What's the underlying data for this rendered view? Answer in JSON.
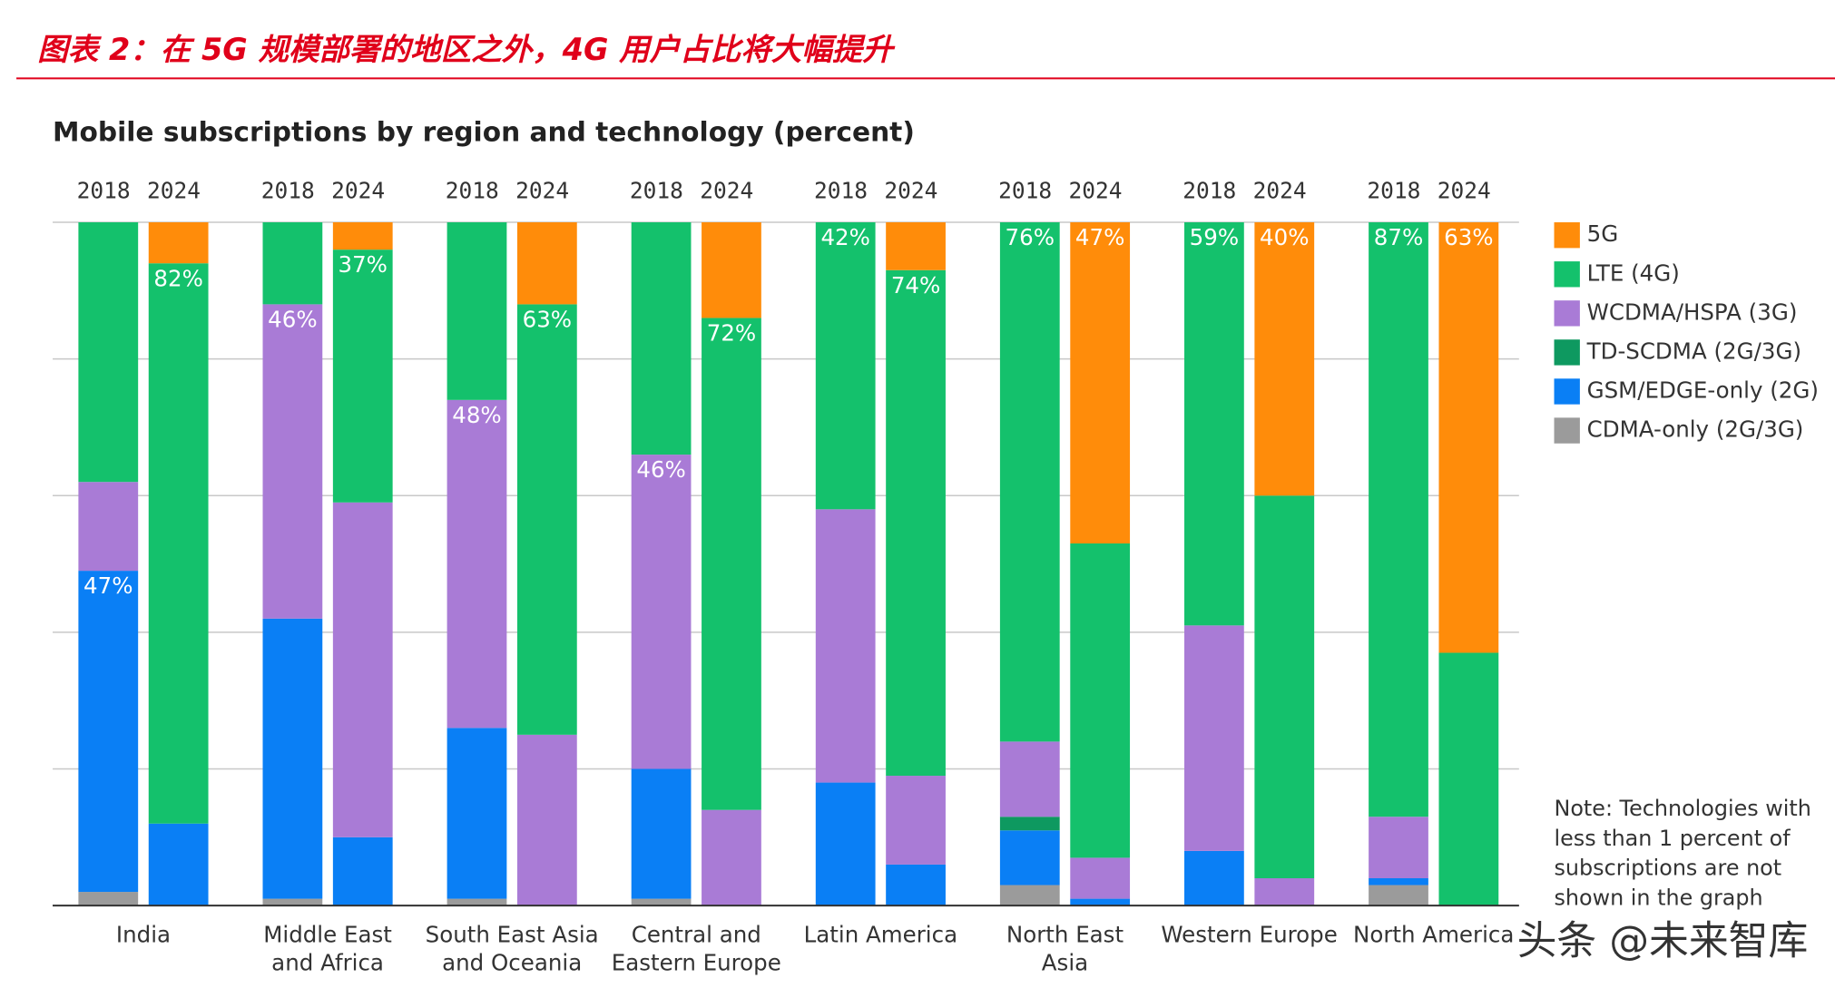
{
  "header": {
    "title": "图表 2：在 5G 规模部署的地区之外，4G 用户占比将大幅提升"
  },
  "chart_data": {
    "type": "stacked-bar",
    "title": "Mobile subscriptions by region and technology (percent)",
    "groups": [
      [
        "India"
      ],
      [
        "Middle East",
        "and Africa"
      ],
      [
        "South East Asia",
        "and Oceania"
      ],
      [
        "Central and",
        "Eastern Europe"
      ],
      [
        "Latin America"
      ],
      [
        "North East",
        "Asia"
      ],
      [
        "Western Europe"
      ],
      [
        "North America"
      ]
    ],
    "categories": [
      "2018",
      "2024",
      "2018",
      "2024",
      "2018",
      "2024",
      "2018",
      "2024",
      "2018",
      "2024",
      "2018",
      "2024",
      "2018",
      "2024",
      "2018",
      "2024"
    ],
    "ylim": [
      0,
      100
    ],
    "yticks": [
      0,
      20,
      40,
      60,
      80,
      100
    ],
    "grid": true,
    "series": [
      {
        "name": "5G",
        "color": "#ff8c0a",
        "values": [
          0,
          6,
          0,
          4,
          0,
          12,
          0,
          14,
          0,
          7,
          0,
          47,
          0,
          40,
          0,
          63
        ],
        "value_labels": [
          null,
          null,
          null,
          null,
          null,
          null,
          null,
          null,
          null,
          null,
          null,
          "47%",
          null,
          "40%",
          null,
          "63%"
        ]
      },
      {
        "name": "LTE (4G)",
        "color": "#14c16c",
        "values": [
          38,
          82,
          12,
          37,
          26,
          63,
          34,
          72,
          42,
          74,
          76,
          46,
          59,
          56,
          87,
          37
        ],
        "value_labels": [
          null,
          "82%",
          null,
          "37%",
          null,
          "63%",
          null,
          "72%",
          "42%",
          "74%",
          "76%",
          null,
          "59%",
          null,
          "87%",
          null
        ]
      },
      {
        "name": "WCDMA/HSPA (3G)",
        "color": "#a97bd6",
        "values": [
          13,
          0,
          46,
          49,
          48,
          25,
          46,
          14,
          40,
          13,
          11,
          6,
          33,
          4,
          9,
          0
        ],
        "value_labels": [
          null,
          null,
          "46%",
          null,
          "48%",
          null,
          "46%",
          null,
          null,
          null,
          null,
          null,
          null,
          null,
          null,
          null
        ]
      },
      {
        "name": "TD-SCDMA (2G/3G)",
        "color": "#0e9960",
        "values": [
          0,
          0,
          0,
          0,
          0,
          0,
          0,
          0,
          0,
          0,
          2,
          0,
          0,
          0,
          0,
          0
        ]
      },
      {
        "name": "GSM/EDGE-only (2G)",
        "color": "#0a7ff5",
        "values": [
          47,
          12,
          41,
          10,
          25,
          0,
          19,
          0,
          18,
          6,
          8,
          1,
          8,
          0,
          1,
          0
        ],
        "value_labels": [
          "47%",
          null,
          null,
          null,
          null,
          null,
          null,
          null,
          null,
          null,
          null,
          null,
          null,
          null,
          null,
          null
        ]
      },
      {
        "name": "CDMA-only (2G/3G)",
        "color": "#9b9b9b",
        "values": [
          2,
          0,
          1,
          0,
          1,
          0,
          1,
          0,
          0,
          0,
          3,
          0,
          0,
          0,
          3,
          0
        ]
      }
    ],
    "note": [
      "Note: Technologies with",
      "less than 1 percent of",
      "subscriptions are not",
      "shown in the graph"
    ]
  },
  "watermark": "头条 @未来智库"
}
